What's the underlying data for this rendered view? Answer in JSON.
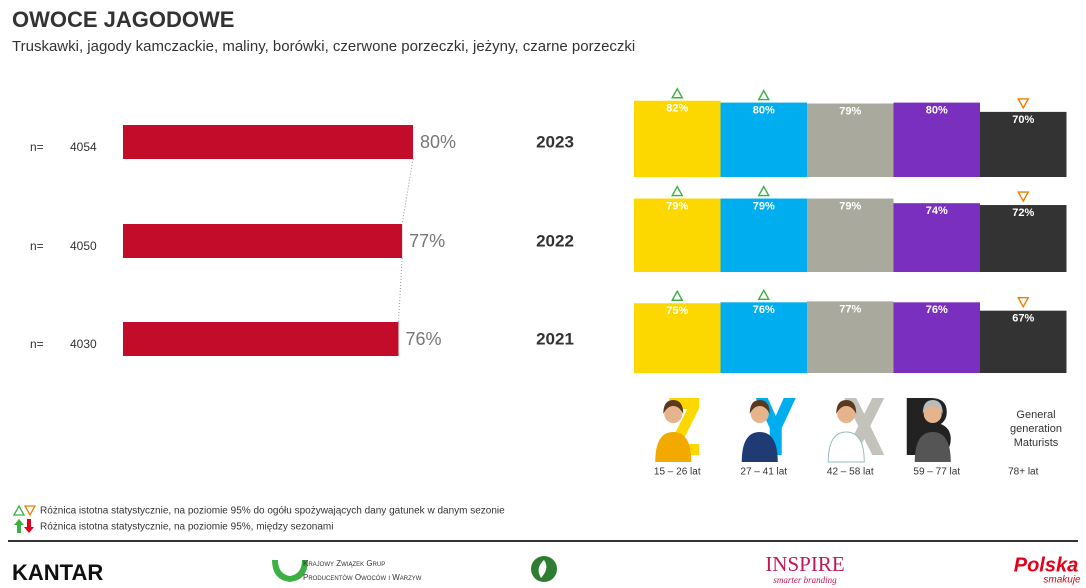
{
  "header": {
    "title": "OWOCE JAGODOWE",
    "subtitle": "Truskawki, jagody kamczackie, maliny, borówki, czerwone porzeczki, jeżyny, czarne porzeczki"
  },
  "chart_data": [
    {
      "type": "hbar",
      "categories": [
        "2023",
        "2022",
        "2021"
      ],
      "n_label": "n=",
      "n": [
        4054,
        4050,
        4030
      ],
      "values": [
        80,
        77,
        76
      ],
      "value_labels": [
        "80%",
        "77%",
        "76%"
      ],
      "color": "#c30b2a",
      "xlim": [
        0,
        100
      ]
    },
    {
      "type": "column-panels",
      "ylim": [
        0,
        100
      ],
      "series": [
        {
          "name": "15 – 26 lat",
          "color": "#fdd800",
          "values": [
            82,
            79,
            75
          ],
          "value_labels": [
            "82%",
            "79%",
            "75%"
          ],
          "markers": [
            "up",
            "up",
            "up"
          ]
        },
        {
          "name": "27 – 41 lat",
          "color": "#00aeef",
          "values": [
            80,
            79,
            76
          ],
          "value_labels": [
            "80%",
            "79%",
            "76%"
          ],
          "markers": [
            "up",
            "up",
            "up"
          ]
        },
        {
          "name": "42 – 58 lat",
          "color": "#a9a99e",
          "values": [
            79,
            79,
            77
          ],
          "value_labels": [
            "79%",
            "79%",
            "77%"
          ],
          "markers": [
            null,
            null,
            null
          ]
        },
        {
          "name": "59 – 77 lat",
          "color": "#7b2fbe",
          "values": [
            80,
            74,
            76
          ],
          "value_labels": [
            "80%",
            "74%",
            "76%"
          ],
          "markers": [
            null,
            null,
            null
          ]
        },
        {
          "name": "78+ lat",
          "caption": "General generation Maturists",
          "color": "#333333",
          "values": [
            70,
            72,
            67
          ],
          "value_labels": [
            "70%",
            "72%",
            "67%"
          ],
          "markers": [
            "down",
            "down",
            "down"
          ]
        }
      ]
    }
  ],
  "notes": [
    "Różnica istotna statystycznie, na poziomie 95% do ogółu spożywających dany gatunek w danym sezonie",
    "Różnica istotna statystycznie, na poziomie 95%, między sezonami"
  ],
  "footer": {
    "kantar": "KANTAR",
    "kzg_line1": "Krajowy Związek Grup",
    "kzg_line2": "Producentów Owoców i Warzyw",
    "inspire": "INSPIRE",
    "inspire_tag": "smarter branding",
    "polska": "Polska",
    "polska_tag": "smakuje"
  }
}
